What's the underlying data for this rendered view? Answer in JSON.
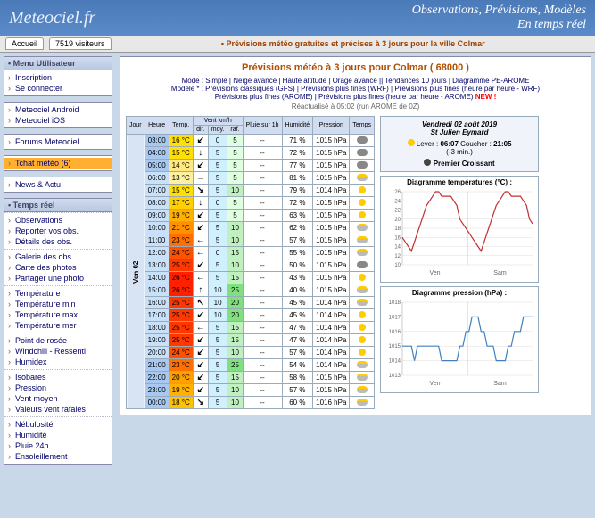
{
  "header": {
    "logo": "Meteociel.fr",
    "tagline1": "Observations, Prévisions, Modèles",
    "tagline2": "En temps réel"
  },
  "topbar": {
    "tab_home": "Accueil",
    "visitors": "7519 visiteurs",
    "banner": "• Prévisions météo gratuites et précises à 3 jours pour la ville Colmar"
  },
  "sidebar": {
    "user": {
      "title": "• Menu Utilisateur",
      "items": [
        "Inscription",
        "Se connecter"
      ]
    },
    "apps": {
      "items": [
        "Meteociel Android",
        "Meteociel iOS"
      ]
    },
    "forums": {
      "items": [
        "Forums Meteociel"
      ]
    },
    "tchat": {
      "items": [
        "Tchat météo (6)"
      ]
    },
    "news": {
      "items": [
        "News & Actu"
      ]
    },
    "realtime": {
      "title": "• Temps réel",
      "groups": [
        [
          "Observations",
          "Reporter vos obs.",
          "Détails des obs."
        ],
        [
          "Galerie des obs.",
          "Carte des photos",
          "Partager une photo"
        ],
        [
          "Température",
          "Température min",
          "Température max",
          "Température mer"
        ],
        [
          "Point de rosée",
          "Windchill - Ressenti",
          "Humidex"
        ],
        [
          "Isobares",
          "Pression",
          "Vent moyen",
          "Valeurs vent rafales"
        ],
        [
          "Nébulosité",
          "Humidité",
          "Pluie 24h",
          "Ensoleillement"
        ]
      ]
    }
  },
  "main": {
    "title": "Prévisions météo à 3 jours pour Colmar ( 68000 )",
    "modes_l1": "Mode : Simple | Neige avancé | Haute altitude | Orage avancé || Tendances 10 jours | Diagramme PE-AROME",
    "modes_l2": "Modèle * : Prévisions classiques (GFS) | Prévisions plus fines (WRF) | Prévisions plus fines (heure par heure - WRF)",
    "modes_l3": "Prévisions plus fines (AROME) | Prévisions plus fines (heure par heure - AROME)",
    "new": "NEW !",
    "updated": "Réactualisé à 05:02 (run AROME de 0Z)"
  },
  "table": {
    "headers": [
      "Jour",
      "Heure",
      "Temp.",
      "Vent km/h dir. moy. raf.",
      "",
      "",
      "Pluie sur 1h",
      "Humidité",
      "Pression",
      "Temps"
    ],
    "day": "Ven 02",
    "rows": [
      {
        "h": "03:00",
        "t": "16 °C",
        "tc": "#ffe000",
        "wd": "↙",
        "wm": "0",
        "wr": "5",
        "p": "--",
        "hu": "71 %",
        "pr": "1015 hPa",
        "wx": "cloud"
      },
      {
        "h": "04:00",
        "t": "15 °C",
        "tc": "#ffe000",
        "wd": "↓",
        "wm": "5",
        "wr": "5",
        "p": "--",
        "hu": "72 %",
        "pr": "1015 hPa",
        "wx": "cloud"
      },
      {
        "h": "05:00",
        "t": "14 °C",
        "tc": "#ffe880",
        "wd": "↙",
        "wm": "5",
        "wr": "5",
        "p": "--",
        "hu": "77 %",
        "pr": "1015 hPa",
        "wx": "cloud"
      },
      {
        "h": "06:00",
        "t": "13 °C",
        "tc": "#fff0a0",
        "wd": "→",
        "wm": "5",
        "wr": "5",
        "p": "--",
        "hu": "81 %",
        "pr": "1015 hPa",
        "wx": "pcloud"
      },
      {
        "h": "07:00",
        "t": "15 °C",
        "tc": "#ffe000",
        "wd": "↘",
        "wm": "5",
        "wr": "10",
        "p": "--",
        "hu": "79 %",
        "pr": "1014 hPa",
        "wx": "sun"
      },
      {
        "h": "08:00",
        "t": "17 °C",
        "tc": "#ffd000",
        "wd": "↓",
        "wm": "0",
        "wr": "5",
        "p": "--",
        "hu": "72 %",
        "pr": "1015 hPa",
        "wx": "sun"
      },
      {
        "h": "09:00",
        "t": "19 °C",
        "tc": "#ffb000",
        "wd": "↙",
        "wm": "5",
        "wr": "5",
        "p": "--",
        "hu": "63 %",
        "pr": "1015 hPa",
        "wx": "sun"
      },
      {
        "h": "10:00",
        "t": "21 °C",
        "tc": "#ff9000",
        "wd": "↙",
        "wm": "5",
        "wr": "10",
        "p": "--",
        "hu": "62 %",
        "pr": "1015 hPa",
        "wx": "pcloud"
      },
      {
        "h": "11:00",
        "t": "23 °C",
        "tc": "#ff7000",
        "wd": "←",
        "wm": "5",
        "wr": "10",
        "p": "--",
        "hu": "57 %",
        "pr": "1015 hPa",
        "wx": "pcloud"
      },
      {
        "h": "12:00",
        "t": "24 °C",
        "tc": "#ff5000",
        "wd": "←",
        "wm": "0",
        "wr": "15",
        "p": "--",
        "hu": "55 %",
        "pr": "1015 hPa",
        "wx": "pcloud"
      },
      {
        "h": "13:00",
        "t": "25 °C",
        "tc": "#ff3800",
        "wd": "↙",
        "wm": "5",
        "wr": "10",
        "p": "--",
        "hu": "50 %",
        "pr": "1015 hPa",
        "wx": "cloud"
      },
      {
        "h": "14:00",
        "t": "26 °C",
        "tc": "#ff2000",
        "wd": "←",
        "wm": "5",
        "wr": "15",
        "p": "--",
        "hu": "43 %",
        "pr": "1015 hPa",
        "wx": "sun"
      },
      {
        "h": "15:00",
        "t": "26 °C",
        "tc": "#ff2000",
        "wd": "↑",
        "wm": "10",
        "wr": "25",
        "p": "--",
        "hu": "40 %",
        "pr": "1015 hPa",
        "wx": "pcloud"
      },
      {
        "h": "16:00",
        "t": "25 °C",
        "tc": "#ff3800",
        "wd": "↖",
        "wm": "10",
        "wr": "20",
        "p": "--",
        "hu": "45 %",
        "pr": "1014 hPa",
        "wx": "pcloud"
      },
      {
        "h": "17:00",
        "t": "25 °C",
        "tc": "#ff3800",
        "wd": "↙",
        "wm": "10",
        "wr": "20",
        "p": "--",
        "hu": "45 %",
        "pr": "1014 hPa",
        "wx": "sun"
      },
      {
        "h": "18:00",
        "t": "25 °C",
        "tc": "#ff3800",
        "wd": "←",
        "wm": "5",
        "wr": "15",
        "p": "--",
        "hu": "47 %",
        "pr": "1014 hPa",
        "wx": "sun"
      },
      {
        "h": "19:00",
        "t": "25 °C",
        "tc": "#ff3800",
        "wd": "↙",
        "wm": "5",
        "wr": "15",
        "p": "--",
        "hu": "47 %",
        "pr": "1014 hPa",
        "wx": "sun"
      },
      {
        "h": "20:00",
        "t": "24 °C",
        "tc": "#ff5000",
        "wd": "↙",
        "wm": "5",
        "wr": "10",
        "p": "--",
        "hu": "57 %",
        "pr": "1014 hPa",
        "wx": "sun"
      },
      {
        "h": "21:00",
        "t": "23 °C",
        "tc": "#ff7000",
        "wd": "↙",
        "wm": "5",
        "wr": "25",
        "p": "--",
        "hu": "54 %",
        "pr": "1014 hPa",
        "wx": "pcloud"
      },
      {
        "h": "22:00",
        "t": "20 °C",
        "tc": "#ffa000",
        "wd": "↙",
        "wm": "5",
        "wr": "15",
        "p": "--",
        "hu": "58 %",
        "pr": "1015 hPa",
        "wx": "pcloud"
      },
      {
        "h": "23:00",
        "t": "19 °C",
        "tc": "#ffb000",
        "wd": "↙",
        "wm": "5",
        "wr": "10",
        "p": "--",
        "hu": "57 %",
        "pr": "1015 hPa",
        "wx": "pcloud"
      },
      {
        "h": "00:00",
        "t": "18 °C",
        "tc": "#ffc000",
        "wd": "↘",
        "wm": "5",
        "wr": "10",
        "p": "--",
        "hu": "60 %",
        "pr": "1016 hPa",
        "wx": "pcloud"
      }
    ],
    "hour_colors": {
      "day": "#c8e0f8",
      "night": "#a8c8f0"
    },
    "wind_moy_color": "#d0f0ff",
    "wind_raf_colors": {
      "low": "#e0ffe0",
      "mid": "#c0f0c0",
      "hi": "#80e080"
    }
  },
  "info": {
    "date": "Vendredi 02 août 2019",
    "saint": "St Julien Eymard",
    "sunrise_lbl": "Lever :",
    "sunrise": "06:07",
    "sunset_lbl": "Coucher :",
    "sunset": "21:05",
    "delta": "(-3 min.)",
    "moon": "Premier Croissant"
  },
  "charts": {
    "temp": {
      "title": "Diagramme températures (°C) :",
      "ylim": [
        10,
        26
      ],
      "yticks": [
        10,
        12,
        14,
        16,
        18,
        20,
        22,
        24,
        26
      ],
      "xlabels": [
        "Ven",
        "Sam"
      ],
      "color": "#c03030",
      "values": [
        16,
        15,
        14,
        13,
        15,
        17,
        19,
        21,
        23,
        24,
        25,
        26,
        26,
        25,
        25,
        25,
        25,
        24,
        23,
        20,
        19,
        18,
        17,
        16,
        15,
        14,
        13,
        15,
        17,
        19,
        21,
        23,
        24,
        25,
        26,
        26,
        25,
        25,
        25,
        25,
        24,
        23,
        20,
        19
      ]
    },
    "press": {
      "title": "Diagramme pression (hPa) :",
      "ylim": [
        1013,
        1018
      ],
      "yticks": [
        1013,
        1014,
        1015,
        1016,
        1017,
        1018
      ],
      "xlabels": [
        "Ven",
        "Sam"
      ],
      "color": "#4080c0",
      "values": [
        1015,
        1015,
        1015,
        1015,
        1014,
        1015,
        1015,
        1015,
        1015,
        1015,
        1015,
        1015,
        1015,
        1014,
        1014,
        1014,
        1014,
        1014,
        1014,
        1015,
        1015,
        1016,
        1016,
        1017,
        1017,
        1017,
        1016,
        1016,
        1015,
        1015,
        1015,
        1014,
        1014,
        1014,
        1014,
        1015,
        1015,
        1016,
        1016,
        1016,
        1017,
        1017,
        1017,
        1017
      ]
    }
  }
}
